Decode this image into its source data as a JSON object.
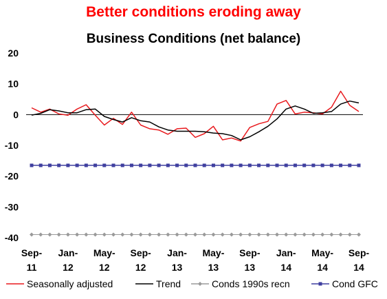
{
  "headline": "Better conditions eroding away",
  "chart_data": {
    "type": "line",
    "title": "Business Conditions (net balance)",
    "ylim": [
      -40,
      20
    ],
    "yticks": [
      20,
      10,
      0,
      -10,
      -20,
      -30,
      -40
    ],
    "grid": false,
    "legend_position": "bottom",
    "x_tick_labels": [
      {
        "month": "Sep-",
        "year": "11"
      },
      {
        "month": "Jan-",
        "year": "12"
      },
      {
        "month": "May-",
        "year": "12"
      },
      {
        "month": "Sep-",
        "year": "12"
      },
      {
        "month": "Jan-",
        "year": "13"
      },
      {
        "month": "May-",
        "year": "13"
      },
      {
        "month": "Sep-",
        "year": "13"
      },
      {
        "month": "Jan-",
        "year": "14"
      },
      {
        "month": "May-",
        "year": "14"
      },
      {
        "month": "Sep-",
        "year": "14"
      }
    ],
    "x": [
      "Sep-11",
      "Oct-11",
      "Nov-11",
      "Dec-11",
      "Jan-12",
      "Feb-12",
      "Mar-12",
      "Apr-12",
      "May-12",
      "Jun-12",
      "Jul-12",
      "Aug-12",
      "Sep-12",
      "Oct-12",
      "Nov-12",
      "Dec-12",
      "Jan-13",
      "Feb-13",
      "Mar-13",
      "Apr-13",
      "May-13",
      "Jun-13",
      "Jul-13",
      "Aug-13",
      "Sep-13",
      "Oct-13",
      "Nov-13",
      "Dec-13",
      "Jan-14",
      "Feb-14",
      "Mar-14",
      "Apr-14",
      "May-14",
      "Jun-14",
      "Jul-14",
      "Aug-14",
      "Sep-14"
    ],
    "series": [
      {
        "name": "Seasonally adjusted",
        "color": "#e8191d",
        "style": "line",
        "values": [
          2.2,
          0.8,
          1.8,
          0.2,
          -0.2,
          1.8,
          3.2,
          -0.2,
          -3.4,
          -1.2,
          -3.2,
          0.8,
          -3.4,
          -4.6,
          -5.0,
          -6.4,
          -4.6,
          -4.4,
          -7.4,
          -6.2,
          -3.8,
          -8.2,
          -7.6,
          -8.6,
          -4.2,
          -3.0,
          -2.2,
          3.4,
          4.6,
          0.2,
          0.8,
          0.6,
          0.2,
          2.4,
          7.6,
          3.0,
          1.0
        ]
      },
      {
        "name": "Trend",
        "color": "#000000",
        "style": "line",
        "values": [
          -0.2,
          0.4,
          1.6,
          1.2,
          0.6,
          0.6,
          1.6,
          1.8,
          -0.6,
          -1.6,
          -2.4,
          -1.0,
          -2.0,
          -2.4,
          -4.0,
          -5.0,
          -5.4,
          -5.4,
          -5.4,
          -5.6,
          -6.0,
          -6.2,
          -6.8,
          -8.2,
          -7.2,
          -5.6,
          -3.8,
          -1.4,
          1.8,
          2.8,
          1.8,
          0.4,
          0.6,
          1.0,
          3.4,
          4.4,
          3.8
        ]
      },
      {
        "name": "Conds 1990s recn",
        "color": "#9a9a9a",
        "style": "diamond",
        "constant": -39
      },
      {
        "name": "Cond GFC",
        "color": "#3f3f9f",
        "style": "square",
        "constant": -16.5
      }
    ]
  }
}
